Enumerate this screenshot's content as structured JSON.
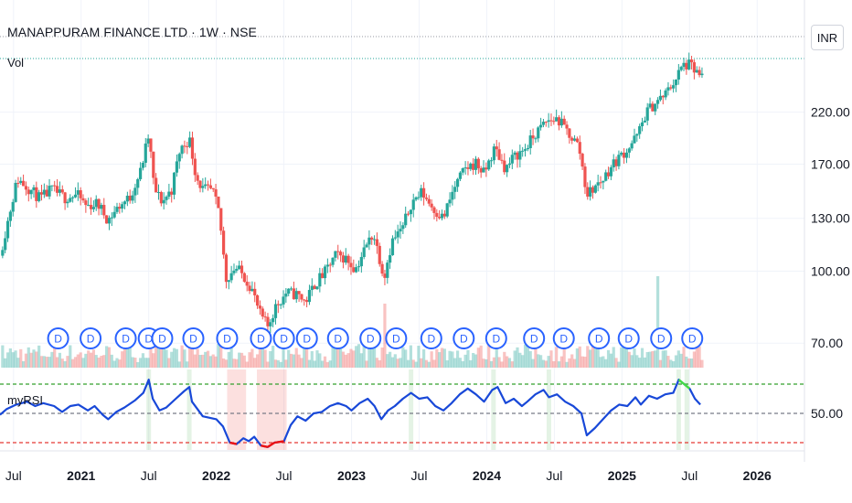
{
  "header": {
    "title": "MANAPPURAM FINANCE LTD · 1W · NSE",
    "volume_label": "Vol",
    "currency": "INR",
    "indicator_label": "myRSI"
  },
  "colors": {
    "up": "#26a69a",
    "down": "#ef5350",
    "rsi_line": "#1848d8",
    "rsi_overbought": "#44dd44",
    "rsi_oversold": "#ee1111",
    "upper_band": "#33a02c",
    "mid_band": "#787b86",
    "lower_band": "#e53935",
    "badge": "#2962ff"
  },
  "chart_data": [
    {
      "type": "candlestick",
      "title": "MANAPPURAM FINANCE LTD · 1W · NSE",
      "y_scale": "log",
      "ylim": [
        62,
        320
      ],
      "y_ticks": [
        "220.00",
        "170.00",
        "130.00",
        "100.00",
        "70.00"
      ],
      "x_ticks": [
        "Jul",
        "2021",
        "Jul",
        "2022",
        "Jul",
        "2023",
        "Jul",
        "2024",
        "Jul",
        "2025",
        "Jul",
        "2026"
      ],
      "x_ticks_bold": [
        false,
        true,
        false,
        true,
        false,
        true,
        false,
        true,
        false,
        true,
        false,
        true
      ],
      "x_tick_times": [
        2020.5,
        2021.0,
        2021.5,
        2022.0,
        2022.5,
        2023.0,
        2023.5,
        2024.0,
        2024.5,
        2025.0,
        2025.5,
        2026.0
      ],
      "x_range": [
        2020.4,
        2026.35
      ],
      "close_path": [
        [
          2020.4,
          108
        ],
        [
          2020.45,
          125
        ],
        [
          2020.53,
          158
        ],
        [
          2020.6,
          152
        ],
        [
          2020.7,
          143
        ],
        [
          2020.78,
          150
        ],
        [
          2020.88,
          144
        ],
        [
          2020.97,
          146
        ],
        [
          2021.04,
          138
        ],
        [
          2021.12,
          140
        ],
        [
          2021.2,
          129
        ],
        [
          2021.28,
          138
        ],
        [
          2021.36,
          144
        ],
        [
          2021.44,
          164
        ],
        [
          2021.5,
          196
        ],
        [
          2021.54,
          150
        ],
        [
          2021.6,
          141
        ],
        [
          2021.67,
          150
        ],
        [
          2021.73,
          182
        ],
        [
          2021.8,
          193
        ],
        [
          2021.85,
          160
        ],
        [
          2021.9,
          150
        ],
        [
          2021.97,
          149
        ],
        [
          2022.02,
          133
        ],
        [
          2022.07,
          96
        ],
        [
          2022.14,
          102
        ],
        [
          2022.2,
          98
        ],
        [
          2022.26,
          92
        ],
        [
          2022.32,
          81
        ],
        [
          2022.38,
          76
        ],
        [
          2022.44,
          84
        ],
        [
          2022.52,
          90
        ],
        [
          2022.6,
          89
        ],
        [
          2022.66,
          86
        ],
        [
          2022.73,
          94
        ],
        [
          2022.8,
          99
        ],
        [
          2022.88,
          108
        ],
        [
          2022.95,
          107
        ],
        [
          2023.03,
          101
        ],
        [
          2023.1,
          112
        ],
        [
          2023.16,
          121
        ],
        [
          2023.24,
          97
        ],
        [
          2023.3,
          116
        ],
        [
          2023.38,
          124
        ],
        [
          2023.44,
          140
        ],
        [
          2023.52,
          148
        ],
        [
          2023.6,
          137
        ],
        [
          2023.68,
          130
        ],
        [
          2023.76,
          151
        ],
        [
          2023.84,
          166
        ],
        [
          2023.92,
          171
        ],
        [
          2023.98,
          162
        ],
        [
          2024.06,
          184
        ],
        [
          2024.14,
          166
        ],
        [
          2024.2,
          176
        ],
        [
          2024.28,
          183
        ],
        [
          2024.36,
          197
        ],
        [
          2024.44,
          210
        ],
        [
          2024.52,
          213
        ],
        [
          2024.6,
          199
        ],
        [
          2024.68,
          186
        ],
        [
          2024.74,
          146
        ],
        [
          2024.8,
          152
        ],
        [
          2024.86,
          158
        ],
        [
          2024.92,
          168
        ],
        [
          2024.98,
          176
        ],
        [
          2025.04,
          183
        ],
        [
          2025.12,
          197
        ],
        [
          2025.18,
          220
        ],
        [
          2025.26,
          232
        ],
        [
          2025.32,
          240
        ],
        [
          2025.4,
          260
        ],
        [
          2025.45,
          277
        ],
        [
          2025.5,
          278
        ],
        [
          2025.56,
          266
        ],
        [
          2025.6,
          258
        ]
      ],
      "volume_profile": "weekly volume histogram, spike near 2023.24 and 2025.26",
      "dividend_marker_label": "D",
      "dividend_times": [
        2020.83,
        2021.07,
        2021.33,
        2021.5,
        2021.6,
        2021.83,
        2022.08,
        2022.33,
        2022.5,
        2022.67,
        2022.9,
        2023.14,
        2023.33,
        2023.59,
        2023.83,
        2024.07,
        2024.35,
        2024.57,
        2024.83,
        2025.05,
        2025.29,
        2025.52
      ]
    },
    {
      "type": "line",
      "title": "myRSI",
      "ylim": [
        25,
        80
      ],
      "y_ticks": [
        "50.00"
      ],
      "bands": [
        70,
        50,
        30
      ],
      "overbought_level": 70,
      "oversold_level": 30,
      "series": [
        {
          "name": "myRSI",
          "points": [
            [
              2020.4,
              49
            ],
            [
              2020.45,
              53
            ],
            [
              2020.52,
              56
            ],
            [
              2020.6,
              58
            ],
            [
              2020.66,
              55
            ],
            [
              2020.72,
              57
            ],
            [
              2020.8,
              55
            ],
            [
              2020.86,
              51
            ],
            [
              2020.92,
              55
            ],
            [
              2020.98,
              56
            ],
            [
              2021.05,
              52
            ],
            [
              2021.1,
              55
            ],
            [
              2021.16,
              49
            ],
            [
              2021.2,
              46
            ],
            [
              2021.26,
              51
            ],
            [
              2021.32,
              54
            ],
            [
              2021.4,
              59
            ],
            [
              2021.46,
              64
            ],
            [
              2021.5,
              73
            ],
            [
              2021.53,
              60
            ],
            [
              2021.58,
              52
            ],
            [
              2021.63,
              54
            ],
            [
              2021.7,
              60
            ],
            [
              2021.76,
              65
            ],
            [
              2021.8,
              68
            ],
            [
              2021.82,
              58
            ],
            [
              2021.86,
              53
            ],
            [
              2021.9,
              48
            ],
            [
              2021.95,
              47
            ],
            [
              2022.0,
              46
            ],
            [
              2022.05,
              41
            ],
            [
              2022.1,
              30
            ],
            [
              2022.15,
              29
            ],
            [
              2022.2,
              33
            ],
            [
              2022.24,
              31
            ],
            [
              2022.28,
              34
            ],
            [
              2022.33,
              28
            ],
            [
              2022.38,
              27
            ],
            [
              2022.43,
              30
            ],
            [
              2022.5,
              31
            ],
            [
              2022.55,
              42
            ],
            [
              2022.6,
              48
            ],
            [
              2022.66,
              45
            ],
            [
              2022.72,
              50
            ],
            [
              2022.78,
              51
            ],
            [
              2022.84,
              55
            ],
            [
              2022.9,
              57
            ],
            [
              2022.96,
              55
            ],
            [
              2023.0,
              52
            ],
            [
              2023.06,
              57
            ],
            [
              2023.12,
              60
            ],
            [
              2023.17,
              55
            ],
            [
              2023.22,
              46
            ],
            [
              2023.27,
              52
            ],
            [
              2023.32,
              55
            ],
            [
              2023.38,
              60
            ],
            [
              2023.44,
              64
            ],
            [
              2023.5,
              60
            ],
            [
              2023.56,
              61
            ],
            [
              2023.62,
              55
            ],
            [
              2023.68,
              52
            ],
            [
              2023.74,
              57
            ],
            [
              2023.8,
              63
            ],
            [
              2023.86,
              67
            ],
            [
              2023.92,
              63
            ],
            [
              2023.98,
              58
            ],
            [
              2024.04,
              66
            ],
            [
              2024.08,
              68
            ],
            [
              2024.14,
              57
            ],
            [
              2024.2,
              60
            ],
            [
              2024.26,
              55
            ],
            [
              2024.3,
              58
            ],
            [
              2024.36,
              63
            ],
            [
              2024.42,
              66
            ],
            [
              2024.46,
              61
            ],
            [
              2024.52,
              63
            ],
            [
              2024.58,
              58
            ],
            [
              2024.64,
              55
            ],
            [
              2024.7,
              50
            ],
            [
              2024.74,
              35
            ],
            [
              2024.8,
              40
            ],
            [
              2024.86,
              46
            ],
            [
              2024.92,
              52
            ],
            [
              2024.98,
              56
            ],
            [
              2025.04,
              55
            ],
            [
              2025.1,
              61
            ],
            [
              2025.14,
              56
            ],
            [
              2025.2,
              62
            ],
            [
              2025.26,
              60
            ],
            [
              2025.32,
              63
            ],
            [
              2025.38,
              64
            ],
            [
              2025.42,
              73
            ],
            [
              2025.46,
              70
            ],
            [
              2025.5,
              67
            ],
            [
              2025.54,
              60
            ],
            [
              2025.58,
              56
            ]
          ]
        }
      ],
      "overbought_shading_times": [
        2021.5,
        2021.8,
        2023.44,
        2024.05,
        2024.46,
        2025.42,
        2025.48
      ],
      "oversold_shading_spans": [
        [
          2022.08,
          2022.22
        ],
        [
          2022.3,
          2022.52
        ]
      ]
    }
  ]
}
